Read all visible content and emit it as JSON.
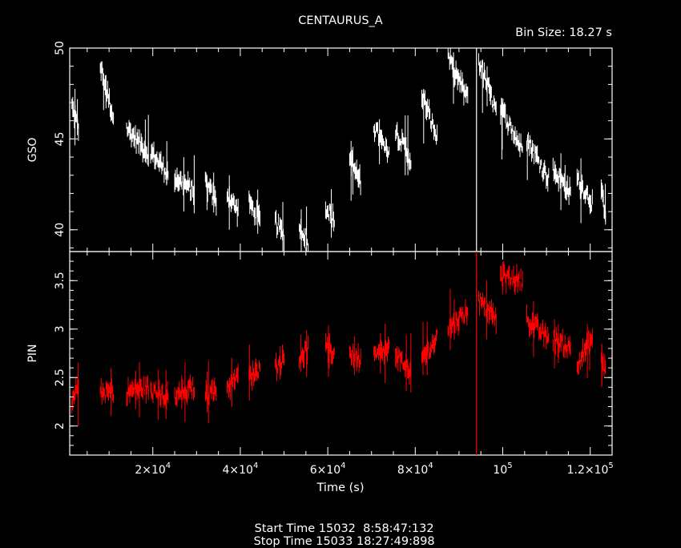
{
  "title": "CENTAURUS_A",
  "bin_size": "Bin Size: 18.27 s",
  "footer": {
    "start": "Start Time 15032  8:58:47:132",
    "stop": "Stop Time 15033 18:27:49:898"
  },
  "colors": {
    "background": "#000000",
    "gso": "#ffffff",
    "pin": "#ff0000",
    "axes": "#ffffff"
  },
  "chart_data": [
    {
      "type": "line",
      "panel": "top",
      "ylabel": "GSO",
      "xlim": [
        1000,
        125000
      ],
      "ylim": [
        38.8,
        50
      ],
      "yticks": [
        40,
        45,
        50
      ],
      "color": "#ffffff",
      "segments": [
        {
          "x": [
            1500,
            3000
          ],
          "y": [
            46.8,
            45.6
          ]
        },
        {
          "x": [
            8000,
            11000
          ],
          "y": [
            49.0,
            46.2
          ]
        },
        {
          "x": [
            14000,
            19000
          ],
          "y": [
            45.6,
            44.2
          ]
        },
        {
          "x": [
            19500,
            23500
          ],
          "y": [
            44.3,
            43.1
          ]
        },
        {
          "x": [
            25000,
            29500
          ],
          "y": [
            42.9,
            42.1
          ]
        },
        {
          "x": [
            32000,
            34500
          ],
          "y": [
            42.6,
            41.5
          ]
        },
        {
          "x": [
            37000,
            39500
          ],
          "y": [
            42.0,
            41.0
          ]
        },
        {
          "x": [
            42000,
            44500
          ],
          "y": [
            41.5,
            40.5
          ]
        },
        {
          "x": [
            48000,
            50000
          ],
          "y": [
            40.5,
            39.6
          ]
        },
        {
          "x": [
            53500,
            55500
          ],
          "y": [
            40.3,
            39.3
          ]
        },
        {
          "x": [
            59500,
            61500
          ],
          "y": [
            41.3,
            40.5
          ]
        },
        {
          "x": [
            65000,
            67500
          ],
          "y": [
            43.9,
            42.6
          ]
        },
        {
          "x": [
            70500,
            74000
          ],
          "y": [
            45.7,
            44.0
          ]
        },
        {
          "x": [
            75500,
            79000
          ],
          "y": [
            45.5,
            43.8
          ]
        },
        {
          "x": [
            81500,
            85000
          ],
          "y": [
            47.5,
            45.0
          ]
        },
        {
          "x": [
            87500,
            92000
          ],
          "y": [
            49.5,
            47.2
          ]
        },
        {
          "x": [
            94500,
            98500
          ],
          "y": [
            49.3,
            46.5
          ]
        },
        {
          "x": [
            99500,
            104500
          ],
          "y": [
            46.7,
            44.4
          ]
        },
        {
          "x": [
            105500,
            110500
          ],
          "y": [
            45.0,
            42.8
          ]
        },
        {
          "x": [
            111500,
            115500
          ],
          "y": [
            43.3,
            42.0
          ]
        },
        {
          "x": [
            117000,
            120500
          ],
          "y": [
            42.8,
            41.5
          ]
        },
        {
          "x": [
            122500,
            123500
          ],
          "y": [
            42.0,
            41.0
          ]
        }
      ],
      "spike": {
        "x": 94000,
        "y": [
          50,
          38.8
        ]
      }
    },
    {
      "type": "line",
      "panel": "bottom",
      "xlabel": "Time (s)",
      "ylabel": "PIN",
      "xlim": [
        1000,
        125000
      ],
      "ylim": [
        1.7,
        3.8
      ],
      "yticks": [
        2,
        2.5,
        3,
        3.5
      ],
      "xticks": [
        {
          "value": 20000,
          "mantissa": "2×10",
          "exp": "4"
        },
        {
          "value": 40000,
          "mantissa": "4×10",
          "exp": "4"
        },
        {
          "value": 60000,
          "mantissa": "6×10",
          "exp": "4"
        },
        {
          "value": 80000,
          "mantissa": "8×10",
          "exp": "4"
        },
        {
          "value": 100000,
          "mantissa": "10",
          "exp": "5"
        },
        {
          "value": 120000,
          "mantissa": "1.2×10",
          "exp": "5"
        }
      ],
      "color": "#ff0000",
      "segments": [
        {
          "x": [
            1500,
            3000
          ],
          "y": [
            2.2,
            2.45
          ]
        },
        {
          "x": [
            8000,
            11000
          ],
          "y": [
            2.35,
            2.35
          ]
        },
        {
          "x": [
            14000,
            19000
          ],
          "y": [
            2.35,
            2.4
          ]
        },
        {
          "x": [
            19500,
            23500
          ],
          "y": [
            2.35,
            2.3
          ]
        },
        {
          "x": [
            25000,
            29500
          ],
          "y": [
            2.3,
            2.4
          ]
        },
        {
          "x": [
            32000,
            34500
          ],
          "y": [
            2.3,
            2.4
          ]
        },
        {
          "x": [
            37000,
            39500
          ],
          "y": [
            2.4,
            2.5
          ]
        },
        {
          "x": [
            42000,
            44500
          ],
          "y": [
            2.5,
            2.6
          ]
        },
        {
          "x": [
            48000,
            50000
          ],
          "y": [
            2.6,
            2.7
          ]
        },
        {
          "x": [
            53500,
            55500
          ],
          "y": [
            2.7,
            2.8
          ]
        },
        {
          "x": [
            59500,
            61500
          ],
          "y": [
            2.8,
            2.75
          ]
        },
        {
          "x": [
            65000,
            67500
          ],
          "y": [
            2.75,
            2.7
          ]
        },
        {
          "x": [
            70500,
            74000
          ],
          "y": [
            2.7,
            2.8
          ]
        },
        {
          "x": [
            75500,
            79000
          ],
          "y": [
            2.75,
            2.55
          ]
        },
        {
          "x": [
            81500,
            85000
          ],
          "y": [
            2.7,
            2.9
          ]
        },
        {
          "x": [
            87500,
            92000
          ],
          "y": [
            3.0,
            3.2
          ]
        },
        {
          "x": [
            94500,
            98500
          ],
          "y": [
            3.3,
            3.1
          ]
        },
        {
          "x": [
            99500,
            104500
          ],
          "y": [
            3.55,
            3.5
          ]
        },
        {
          "x": [
            105500,
            110500
          ],
          "y": [
            3.1,
            2.9
          ]
        },
        {
          "x": [
            111500,
            115500
          ],
          "y": [
            2.9,
            2.8
          ]
        },
        {
          "x": [
            117000,
            120500
          ],
          "y": [
            2.65,
            2.9
          ]
        },
        {
          "x": [
            122500,
            123500
          ],
          "y": [
            2.65,
            2.6
          ]
        }
      ],
      "spike": {
        "x": 94000,
        "y": [
          3.8,
          1.7
        ]
      }
    }
  ]
}
